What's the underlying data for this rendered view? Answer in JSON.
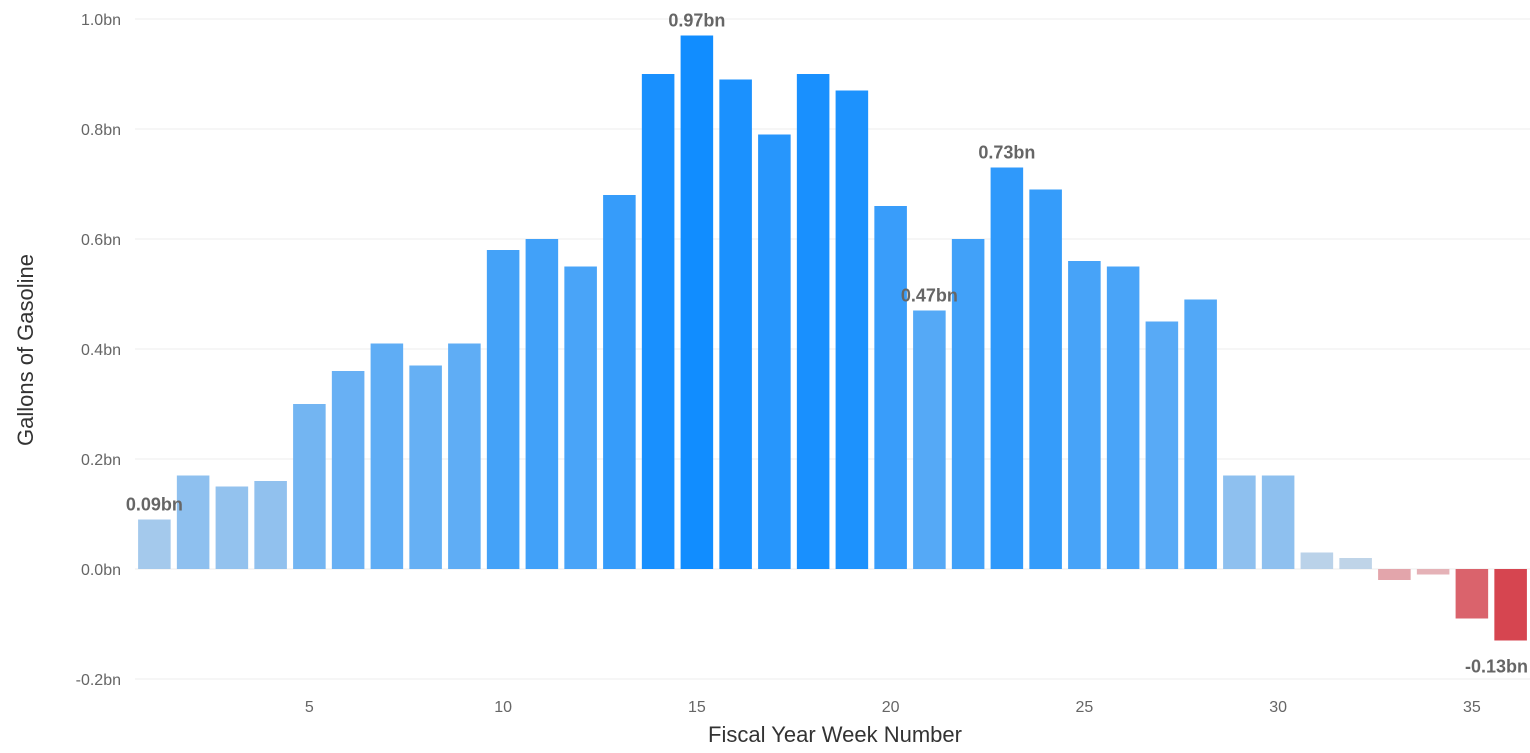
{
  "chart_data": {
    "type": "bar",
    "title": "",
    "xlabel": "Fiscal Year Week Number",
    "ylabel": "Gallons of Gasoline",
    "x": [
      1,
      2,
      3,
      4,
      5,
      6,
      7,
      8,
      9,
      10,
      11,
      12,
      13,
      14,
      15,
      16,
      17,
      18,
      19,
      20,
      21,
      22,
      23,
      24,
      25,
      26,
      27,
      28,
      29,
      30,
      31,
      32,
      33,
      34,
      35,
      36
    ],
    "values": [
      0.09,
      0.17,
      0.15,
      0.16,
      0.3,
      0.36,
      0.41,
      0.37,
      0.41,
      0.58,
      0.6,
      0.55,
      0.68,
      0.9,
      0.97,
      0.89,
      0.79,
      0.9,
      0.87,
      0.66,
      0.47,
      0.6,
      0.73,
      0.69,
      0.56,
      0.55,
      0.45,
      0.49,
      0.17,
      0.17,
      0.03,
      0.02,
      -0.02,
      -0.01,
      -0.09,
      -0.13
    ],
    "value_labels": [
      {
        "week": 1,
        "text": "0.09bn"
      },
      {
        "week": 15,
        "text": "0.97bn"
      },
      {
        "week": 21,
        "text": "0.47bn"
      },
      {
        "week": 23,
        "text": "0.73bn"
      },
      {
        "week": 36,
        "text": "-0.13bn"
      }
    ],
    "ylim": [
      -0.2,
      1.0
    ],
    "yticks": [
      -0.2,
      0.0,
      0.2,
      0.4,
      0.6,
      0.8,
      1.0
    ],
    "ytick_labels": [
      "-0.2bn",
      "0.0bn",
      "0.2bn",
      "0.4bn",
      "0.6bn",
      "0.8bn",
      "1.0bn"
    ],
    "xticks": [
      5,
      10,
      15,
      20,
      25,
      30,
      35
    ],
    "xtick_labels": [
      "5",
      "10",
      "15",
      "20",
      "25",
      "30",
      "35"
    ],
    "grid": "horizontal",
    "legend": "none",
    "colors": {
      "positive_max": "#118DFF",
      "neutral": "#E6E6E6",
      "negative_max": "#D64550",
      "label_text": "#666666",
      "axis_text": "#666666"
    }
  }
}
